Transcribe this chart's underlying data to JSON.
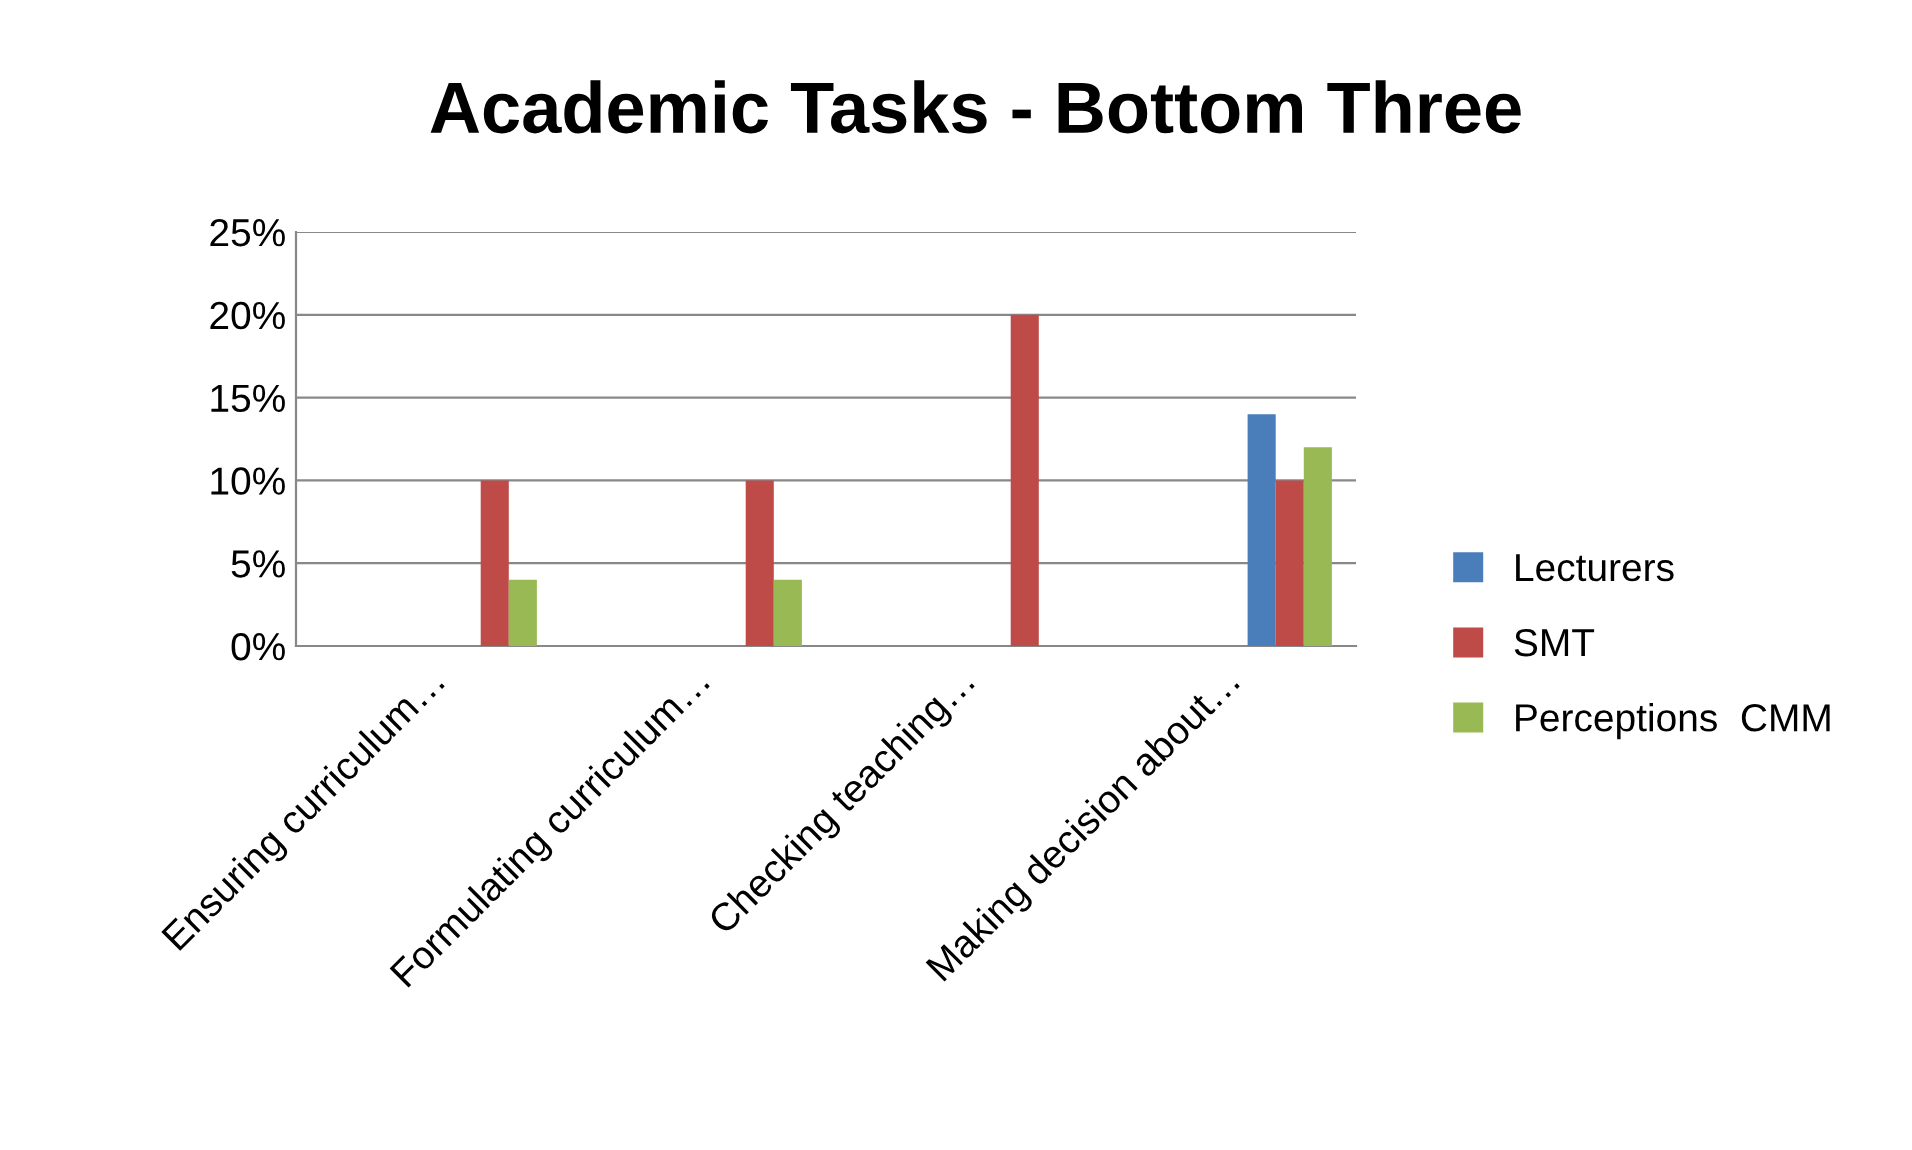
{
  "chart_data": {
    "type": "bar",
    "title": "Academic Tasks - Bottom Three",
    "categories": [
      "Ensuring curriculum…",
      "Formulating curriculum…",
      "Checking teaching…",
      "Making decision about…"
    ],
    "series": [
      {
        "name": "Lecturers",
        "color": "#4a7ebb",
        "values": [
          0,
          0,
          0,
          14
        ]
      },
      {
        "name": "SMT",
        "color": "#be4b48",
        "values": [
          10,
          10,
          20,
          10
        ]
      },
      {
        "name": "Perceptions  CMM",
        "color": "#98b954",
        "values": [
          4,
          4,
          0,
          12
        ]
      }
    ],
    "ylim": [
      0,
      25
    ],
    "yticks": [
      {
        "value": 0,
        "label": "0%"
      },
      {
        "value": 5,
        "label": "5%"
      },
      {
        "value": 10,
        "label": "10%"
      },
      {
        "value": 15,
        "label": "15%"
      },
      {
        "value": 20,
        "label": "20%"
      },
      {
        "value": 25,
        "label": "25%"
      }
    ],
    "grid": "y",
    "legend": "right"
  }
}
